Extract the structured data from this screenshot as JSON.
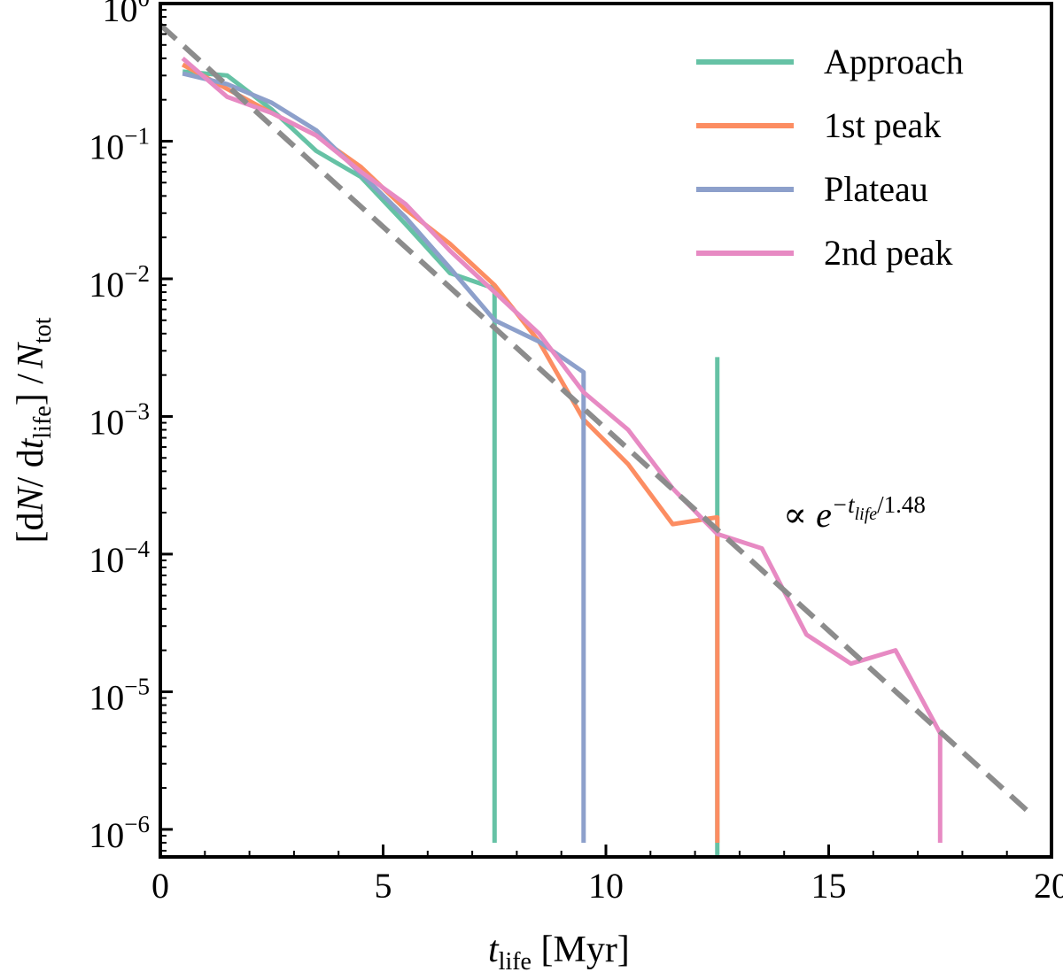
{
  "chart_data": {
    "type": "line",
    "title": "",
    "xlabel": {
      "main": "t",
      "sub": "life",
      "rest": " [Myr]"
    },
    "ylabel": {
      "p1": "[d",
      "N": "N",
      "p2": "/ d",
      "t": "t",
      "tsub": "life",
      "p3": "] /",
      "Nt": "N",
      "Nsub": "tot"
    },
    "xlim": [
      0,
      20
    ],
    "ylim_log10": [
      -6.2,
      0
    ],
    "x_ticks": [
      0,
      5,
      10,
      15,
      20
    ],
    "x_tick_labels": [
      "0",
      "5",
      "10",
      "15",
      "20"
    ],
    "y_tick_exponents": [
      0,
      -1,
      -2,
      -3,
      -4,
      -5,
      -6
    ],
    "y_tick_labels": [
      {
        "base": "10",
        "exp": "0"
      },
      {
        "base": "10",
        "exp": "−1"
      },
      {
        "base": "10",
        "exp": "−2"
      },
      {
        "base": "10",
        "exp": "−3"
      },
      {
        "base": "10",
        "exp": "−4"
      },
      {
        "base": "10",
        "exp": "−5"
      },
      {
        "base": "10",
        "exp": "−6"
      }
    ],
    "legend_position": "top-right",
    "series": [
      {
        "name": "Approach",
        "color": "#66c2a5",
        "x": [
          0.5,
          1.5,
          2.5,
          3.5,
          4.5,
          5.5,
          6.5,
          7.5,
          7.5
        ],
        "y": [
          0.32,
          0.3,
          0.17,
          0.085,
          0.055,
          0.025,
          0.011,
          0.0085,
          8e-07
        ],
        "spike": {
          "x": 12.5,
          "y": 0.0027
        }
      },
      {
        "name": "1st peak",
        "color": "#fc8d62",
        "x": [
          0.5,
          1.5,
          2.5,
          3.5,
          4.5,
          5.5,
          6.5,
          7.5,
          8.5,
          9.5,
          10.5,
          11.5,
          12.5,
          12.5
        ],
        "y": [
          0.36,
          0.24,
          0.16,
          0.11,
          0.065,
          0.032,
          0.018,
          0.009,
          0.0035,
          0.00095,
          0.00045,
          0.000165,
          0.000185,
          8e-07
        ]
      },
      {
        "name": "Plateau",
        "color": "#8da0cb",
        "x": [
          0.5,
          1.5,
          2.5,
          3.5,
          4.5,
          5.5,
          6.5,
          7.5,
          8.5,
          9.5,
          9.5
        ],
        "y": [
          0.31,
          0.26,
          0.19,
          0.12,
          0.058,
          0.028,
          0.012,
          0.005,
          0.0035,
          0.0021,
          8e-07
        ]
      },
      {
        "name": "2nd peak",
        "color": "#e78ac3",
        "x": [
          0.5,
          1.5,
          2.5,
          3.5,
          4.5,
          5.5,
          6.5,
          7.5,
          8.5,
          9.5,
          10.5,
          11.5,
          12.5,
          13.5,
          14.5,
          15.5,
          16.5,
          17.5,
          17.5
        ],
        "y": [
          0.4,
          0.21,
          0.16,
          0.11,
          0.06,
          0.035,
          0.016,
          0.008,
          0.004,
          0.0015,
          0.0008,
          0.0003,
          0.00014,
          0.00011,
          2.6e-05,
          1.6e-05,
          2e-05,
          5e-06,
          8e-07
        ]
      }
    ],
    "fit": {
      "label": {
        "prefix": "∝ ",
        "e": "e",
        "exp_main": "−t",
        "exp_sub": "life",
        "exp_rest": "/1.48"
      },
      "color": "#8c8c8c",
      "amplitude": 0.7,
      "scale_myr": 1.48,
      "x_range": [
        0,
        19.5
      ]
    }
  }
}
